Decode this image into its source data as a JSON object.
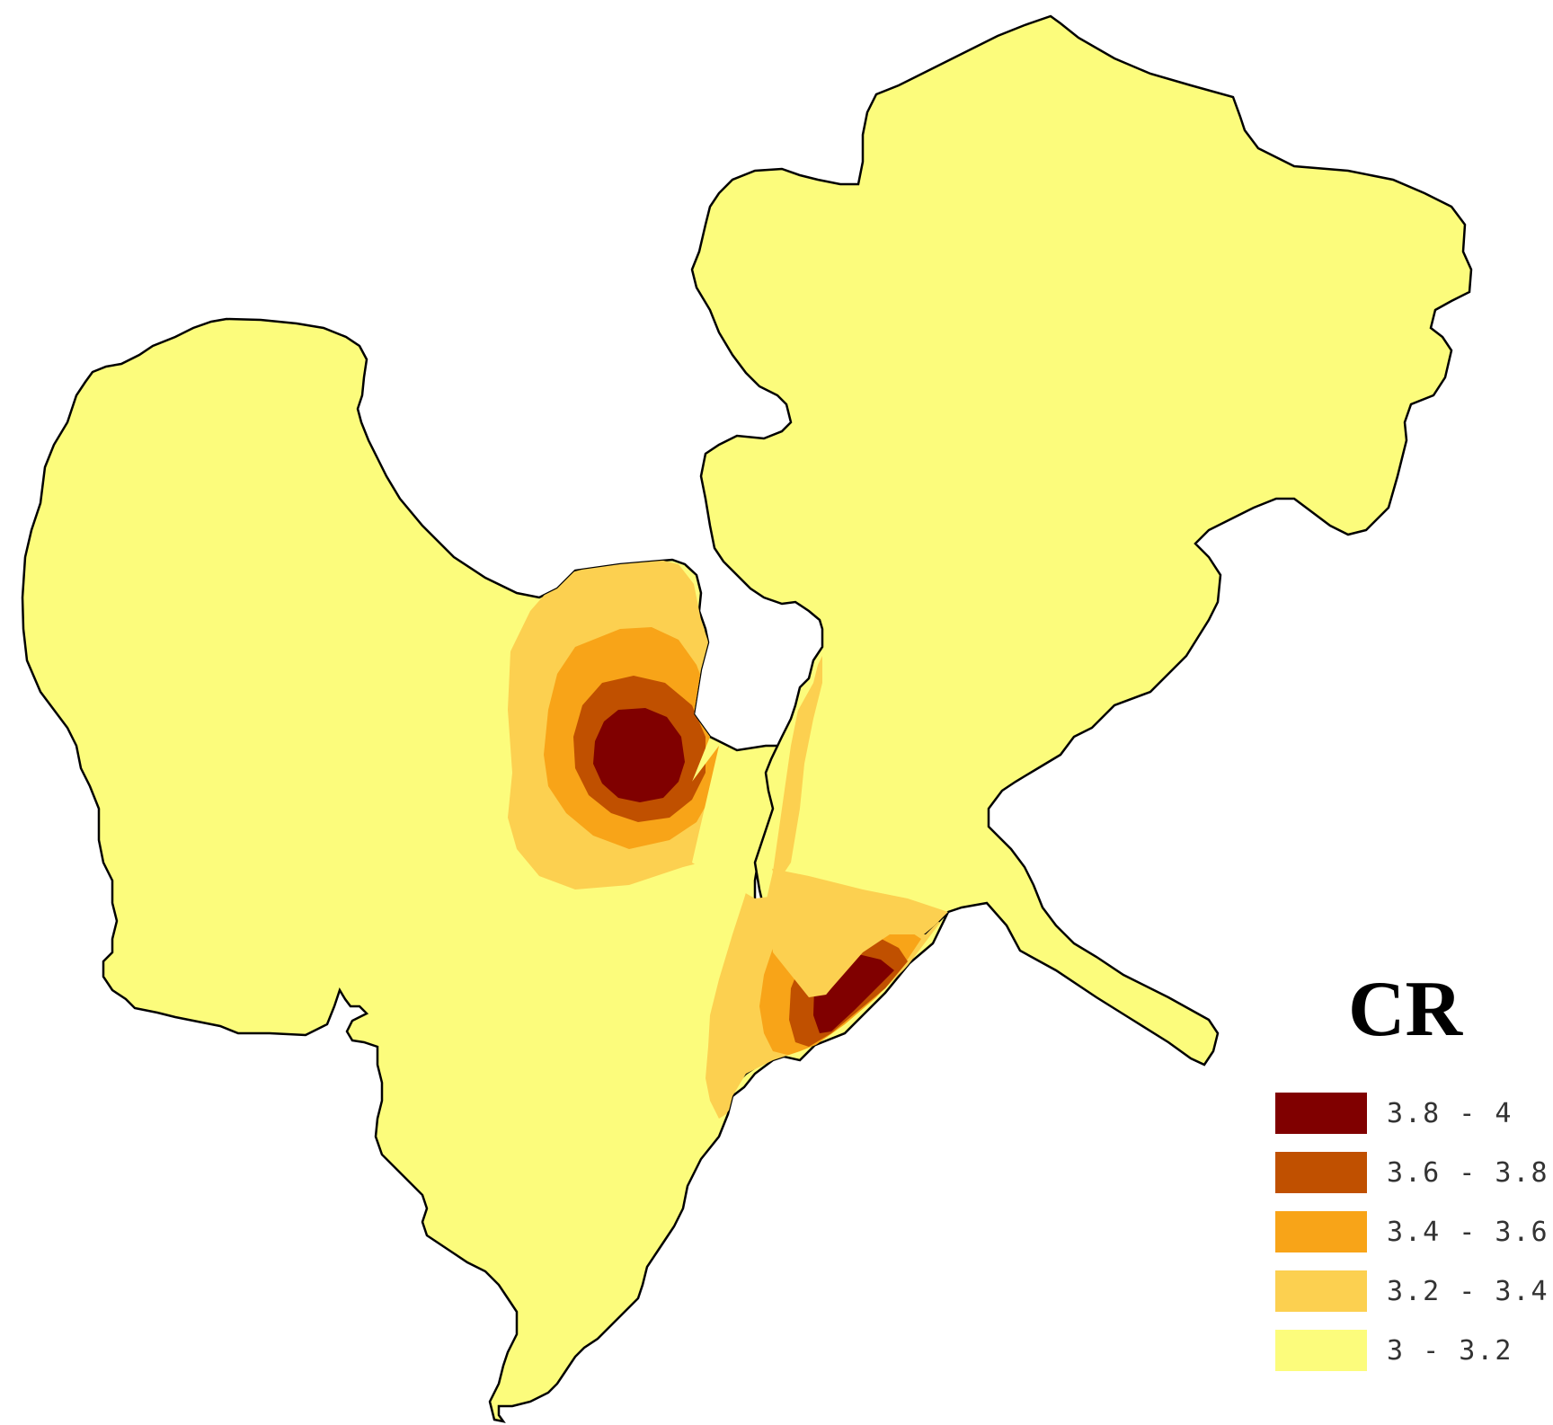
{
  "legend": {
    "title": "CR",
    "items": [
      {
        "label": "3.8 - 4",
        "color": "#800000"
      },
      {
        "label": "3.6 - 3.8",
        "color": "#c05000"
      },
      {
        "label": "3.4 - 3.6",
        "color": "#f8a418"
      },
      {
        "label": "3.2 - 3.4",
        "color": "#fcd050"
      },
      {
        "label": "3 - 3.2",
        "color": "#fcfc7c"
      }
    ]
  },
  "map": {
    "background_color": "#ffffff",
    "outline_color": "#000000",
    "base_fill": "#fcfc7c"
  }
}
